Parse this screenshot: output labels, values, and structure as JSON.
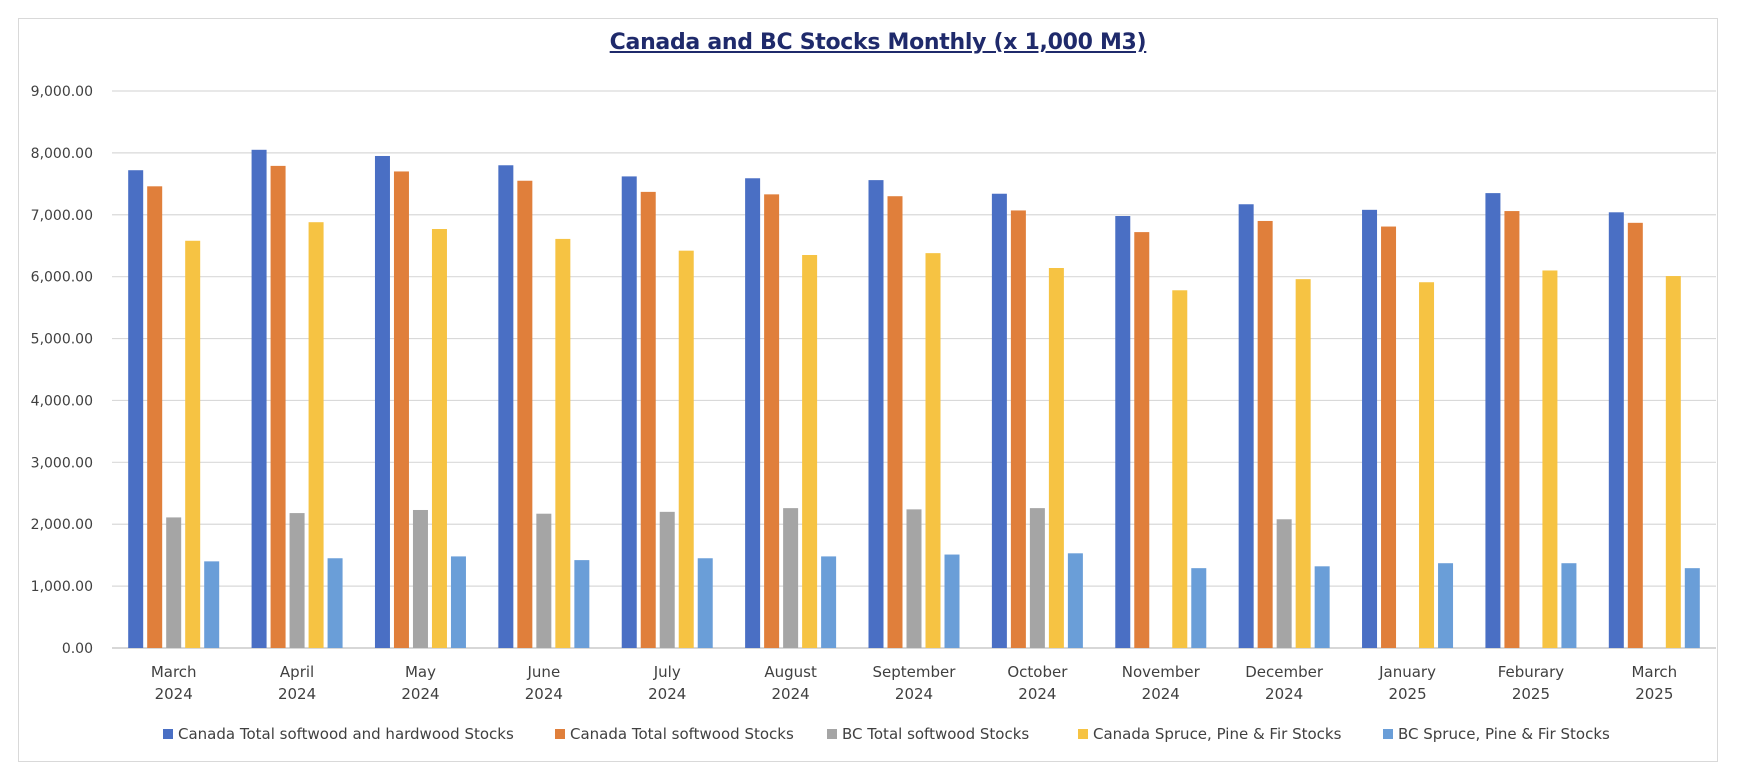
{
  "chart_data": {
    "type": "bar",
    "title": "Canada and BC Stocks  Monthly (x 1,000 M3)",
    "xlabel": "",
    "ylabel": "",
    "ylim": [
      0,
      9000
    ],
    "yticks": [
      0,
      1000,
      2000,
      3000,
      4000,
      5000,
      6000,
      7000,
      8000,
      9000
    ],
    "ytick_labels": [
      "0.00",
      "1,000.00",
      "2,000.00",
      "3,000.00",
      "4,000.00",
      "5,000.00",
      "6,000.00",
      "7,000.00",
      "8,000.00",
      "9,000.00"
    ],
    "grid": true,
    "legend_position": "bottom",
    "categories": [
      [
        "March",
        "2024"
      ],
      [
        "April",
        "2024"
      ],
      [
        "May",
        "2024"
      ],
      [
        "June",
        "2024"
      ],
      [
        "July",
        "2024"
      ],
      [
        "August",
        "2024"
      ],
      [
        "September",
        "2024"
      ],
      [
        "October",
        "2024"
      ],
      [
        "November",
        "2024"
      ],
      [
        "December",
        "2024"
      ],
      [
        "January",
        "2025"
      ],
      [
        "Feburary",
        "2025"
      ],
      [
        "March",
        "2025"
      ]
    ],
    "series": [
      {
        "name": "Canada Total softwood and hardwood Stocks",
        "color": "#4a6fc4",
        "values": [
          7720,
          8050,
          7950,
          7800,
          7620,
          7590,
          7560,
          7340,
          6980,
          7170,
          7080,
          7350,
          7040
        ]
      },
      {
        "name": "Canada Total softwood Stocks",
        "color": "#e07f3b",
        "values": [
          7460,
          7790,
          7700,
          7550,
          7370,
          7330,
          7300,
          7070,
          6720,
          6900,
          6810,
          7060,
          6870
        ]
      },
      {
        "name": "BC Total softwood Stocks",
        "color": "#a5a5a5",
        "values": [
          2110,
          2180,
          2230,
          2170,
          2200,
          2260,
          2240,
          2260,
          null,
          2080,
          null,
          null,
          null
        ]
      },
      {
        "name": "Canada Spruce, Pine & Fir Stocks",
        "color": "#f6c343",
        "values": [
          6580,
          6880,
          6770,
          6610,
          6420,
          6350,
          6380,
          6140,
          5780,
          5960,
          5910,
          6100,
          6010
        ]
      },
      {
        "name": "BC Spruce, Pine & Fir Stocks",
        "color": "#6a9ed8",
        "values": [
          1400,
          1450,
          1480,
          1420,
          1450,
          1480,
          1510,
          1530,
          1290,
          1320,
          1370,
          1370,
          1290
        ]
      }
    ]
  }
}
